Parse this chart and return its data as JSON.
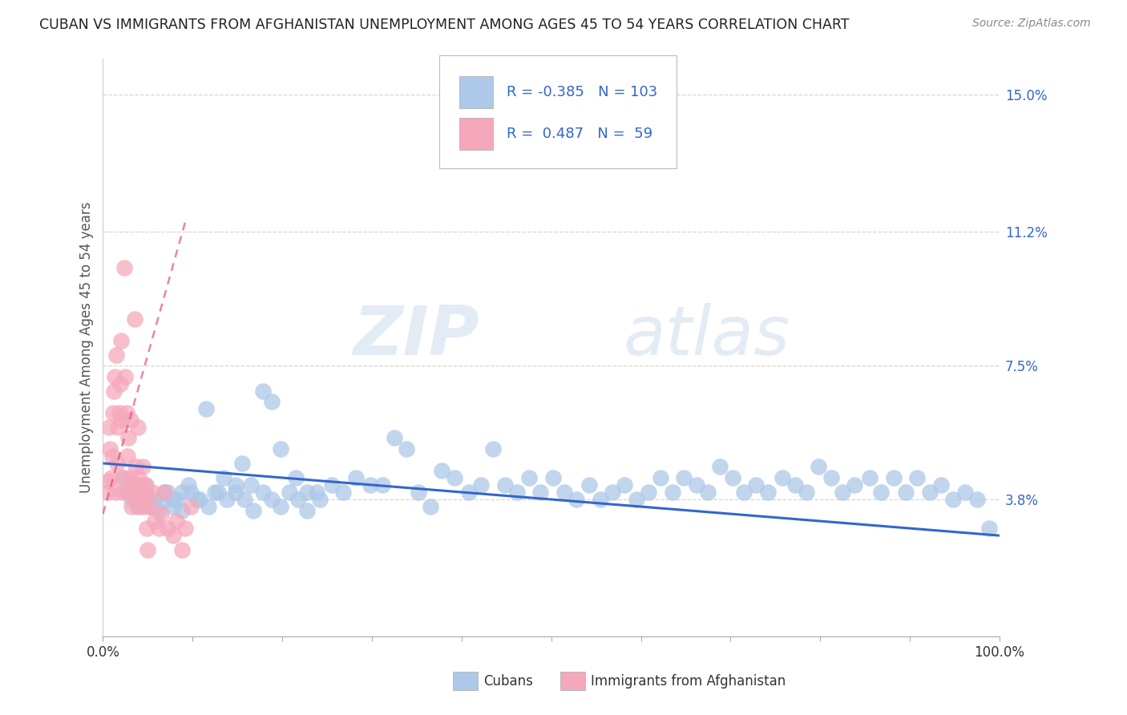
{
  "title": "CUBAN VS IMMIGRANTS FROM AFGHANISTAN UNEMPLOYMENT AMONG AGES 45 TO 54 YEARS CORRELATION CHART",
  "source": "Source: ZipAtlas.com",
  "ylabel": "Unemployment Among Ages 45 to 54 years",
  "yticks": [
    0.0,
    0.038,
    0.075,
    0.112,
    0.15
  ],
  "ytick_labels": [
    "",
    "3.8%",
    "7.5%",
    "11.2%",
    "15.0%"
  ],
  "xlim": [
    0.0,
    1.0
  ],
  "ylim": [
    0.0,
    0.16
  ],
  "blue_R": "-0.385",
  "blue_N": "103",
  "pink_R": "0.487",
  "pink_N": "59",
  "blue_color": "#adc8e8",
  "pink_color": "#f5a8bb",
  "blue_line_color": "#3366cc",
  "pink_line_color": "#dd4477",
  "blue_scatter_x": [
    0.022,
    0.028,
    0.032,
    0.038,
    0.042,
    0.048,
    0.052,
    0.058,
    0.062,
    0.068,
    0.072,
    0.078,
    0.082,
    0.088,
    0.095,
    0.105,
    0.115,
    0.125,
    0.135,
    0.148,
    0.155,
    0.165,
    0.178,
    0.188,
    0.198,
    0.215,
    0.228,
    0.242,
    0.255,
    0.268,
    0.282,
    0.298,
    0.312,
    0.325,
    0.338,
    0.352,
    0.365,
    0.378,
    0.392,
    0.408,
    0.422,
    0.435,
    0.448,
    0.462,
    0.475,
    0.488,
    0.502,
    0.515,
    0.528,
    0.542,
    0.555,
    0.568,
    0.582,
    0.595,
    0.608,
    0.622,
    0.635,
    0.648,
    0.662,
    0.675,
    0.688,
    0.702,
    0.715,
    0.728,
    0.742,
    0.758,
    0.772,
    0.785,
    0.798,
    0.812,
    0.825,
    0.838,
    0.855,
    0.868,
    0.882,
    0.895,
    0.908,
    0.922,
    0.935,
    0.948,
    0.962,
    0.975,
    0.988,
    0.038,
    0.048,
    0.058,
    0.068,
    0.078,
    0.088,
    0.098,
    0.108,
    0.118,
    0.128,
    0.138,
    0.148,
    0.158,
    0.168,
    0.178,
    0.188,
    0.198,
    0.208,
    0.218,
    0.228,
    0.238
  ],
  "blue_scatter_y": [
    0.044,
    0.04,
    0.038,
    0.036,
    0.04,
    0.038,
    0.036,
    0.038,
    0.035,
    0.038,
    0.04,
    0.036,
    0.038,
    0.04,
    0.042,
    0.038,
    0.063,
    0.04,
    0.044,
    0.04,
    0.048,
    0.042,
    0.068,
    0.065,
    0.052,
    0.044,
    0.04,
    0.038,
    0.042,
    0.04,
    0.044,
    0.042,
    0.042,
    0.055,
    0.052,
    0.04,
    0.036,
    0.046,
    0.044,
    0.04,
    0.042,
    0.052,
    0.042,
    0.04,
    0.044,
    0.04,
    0.044,
    0.04,
    0.038,
    0.042,
    0.038,
    0.04,
    0.042,
    0.038,
    0.04,
    0.044,
    0.04,
    0.044,
    0.042,
    0.04,
    0.047,
    0.044,
    0.04,
    0.042,
    0.04,
    0.044,
    0.042,
    0.04,
    0.047,
    0.044,
    0.04,
    0.042,
    0.044,
    0.04,
    0.044,
    0.04,
    0.044,
    0.04,
    0.042,
    0.038,
    0.04,
    0.038,
    0.03,
    0.038,
    0.042,
    0.036,
    0.04,
    0.038,
    0.035,
    0.04,
    0.038,
    0.036,
    0.04,
    0.038,
    0.042,
    0.038,
    0.035,
    0.04,
    0.038,
    0.036,
    0.04,
    0.038,
    0.035,
    0.04
  ],
  "pink_scatter_x": [
    0.005,
    0.006,
    0.007,
    0.008,
    0.009,
    0.01,
    0.011,
    0.012,
    0.013,
    0.014,
    0.015,
    0.016,
    0.017,
    0.018,
    0.019,
    0.02,
    0.021,
    0.022,
    0.023,
    0.024,
    0.025,
    0.026,
    0.027,
    0.028,
    0.029,
    0.03,
    0.031,
    0.032,
    0.033,
    0.034,
    0.035,
    0.036,
    0.037,
    0.038,
    0.039,
    0.04,
    0.041,
    0.042,
    0.043,
    0.044,
    0.045,
    0.046,
    0.047,
    0.048,
    0.049,
    0.05,
    0.052,
    0.055,
    0.058,
    0.062,
    0.065,
    0.068,
    0.072,
    0.078,
    0.082,
    0.088,
    0.092,
    0.098
  ],
  "pink_scatter_y": [
    0.04,
    0.043,
    0.058,
    0.052,
    0.044,
    0.05,
    0.062,
    0.068,
    0.072,
    0.04,
    0.078,
    0.048,
    0.058,
    0.062,
    0.07,
    0.082,
    0.06,
    0.04,
    0.044,
    0.102,
    0.072,
    0.062,
    0.05,
    0.055,
    0.04,
    0.044,
    0.06,
    0.036,
    0.042,
    0.04,
    0.088,
    0.047,
    0.042,
    0.04,
    0.058,
    0.044,
    0.036,
    0.04,
    0.042,
    0.047,
    0.04,
    0.036,
    0.042,
    0.04,
    0.03,
    0.024,
    0.036,
    0.04,
    0.032,
    0.03,
    0.034,
    0.04,
    0.03,
    0.028,
    0.032,
    0.024,
    0.03,
    0.036
  ],
  "blue_trend_x": [
    0.0,
    1.0
  ],
  "blue_trend_y": [
    0.048,
    0.028
  ],
  "pink_trend_x": [
    0.0,
    0.092
  ],
  "pink_trend_y": [
    0.034,
    0.115
  ],
  "watermark_zip": "ZIP",
  "watermark_atlas": "atlas",
  "legend_R_color": "#3366cc",
  "legend_N_color": "#000000",
  "ytick_color": "#3366cc"
}
